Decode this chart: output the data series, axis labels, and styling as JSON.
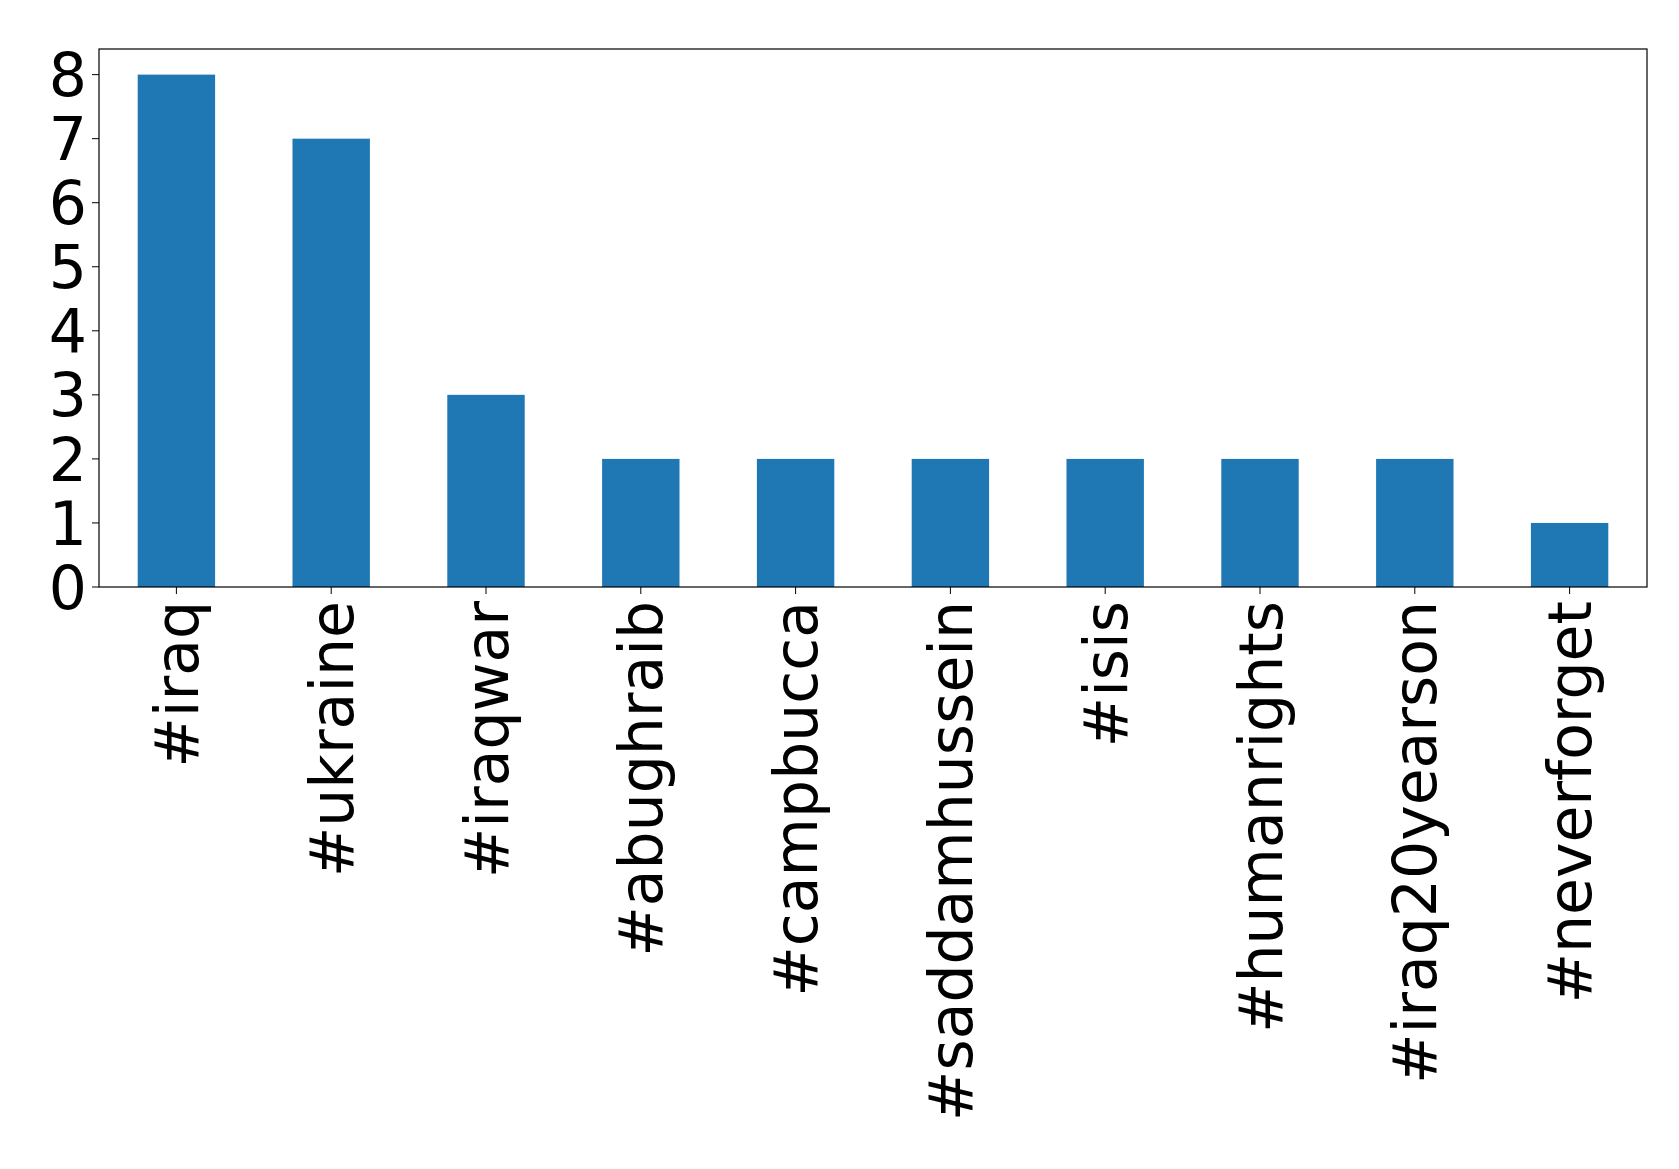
{
  "chart_data": {
    "type": "bar",
    "categories": [
      "#iraq",
      "#ukraine",
      "#iraqwar",
      "#abughraib",
      "#campbucca",
      "#saddamhussein",
      "#isis",
      "#humanrights",
      "#iraq20yearson",
      "#neverforget"
    ],
    "values": [
      8,
      7,
      3,
      2,
      2,
      2,
      2,
      2,
      2,
      1
    ],
    "color": "#1f77b4",
    "ylim": [
      0,
      8.4
    ],
    "yticks": [
      0,
      1,
      2,
      3,
      4,
      5,
      6,
      7,
      8
    ]
  }
}
